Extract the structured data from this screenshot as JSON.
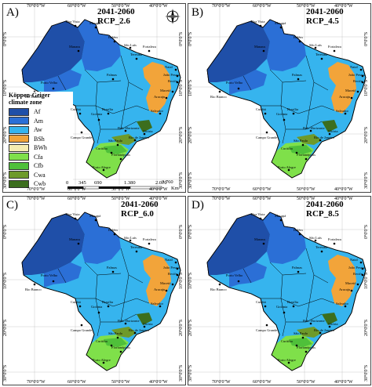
{
  "panels": [
    {
      "label": "A)",
      "period": "2041-2060",
      "scenario": "RCP_2.6"
    },
    {
      "label": "B)",
      "period": "2041-2060",
      "scenario": "RCP_4.5"
    },
    {
      "label": "C)",
      "period": "2041-2060",
      "scenario": "RCP_6.0"
    },
    {
      "label": "D)",
      "period": "2041-2060",
      "scenario": "RCP_8.5"
    }
  ],
  "axes": {
    "lon_ticks": [
      "70°0'0\"W",
      "60°0'0\"W",
      "50°0'0\"W",
      "40°0'0\"W"
    ],
    "lat_ticks": [
      "0°0'0\"S",
      "10°0'0\"S",
      "20°0'0\"S",
      "30°0'0\"S"
    ]
  },
  "legend": {
    "title_line1": "Köppen-Geiger",
    "title_line2": "climate zone",
    "items": [
      {
        "code": "Af",
        "color": "#1f4fa8"
      },
      {
        "code": "Am",
        "color": "#2b6fd6"
      },
      {
        "code": "Aw",
        "color": "#36b4ee"
      },
      {
        "code": "BSh",
        "color": "#f2a43a"
      },
      {
        "code": "BWh",
        "color": "#f5ecb0"
      },
      {
        "code": "Cfa",
        "color": "#7fe04a"
      },
      {
        "code": "Cfb",
        "color": "#4fc03a"
      },
      {
        "code": "Cwa",
        "color": "#6e9a2a"
      },
      {
        "code": "Cwb",
        "color": "#3c6e1e"
      }
    ]
  },
  "scale": {
    "labels": [
      "0",
      "345",
      "690",
      "1.380",
      "2.070",
      "2.760"
    ],
    "unit": "Km"
  },
  "cities": [
    "Macapá",
    "Boa Vista",
    "Manaus",
    "Belém",
    "Fortaleza",
    "Teresina",
    "Natal",
    "João Pessoa",
    "Recife",
    "Maceió",
    "Aracaju",
    "Salvador",
    "Palmas",
    "Porto Velho",
    "Rio Branco",
    "Cuiabá",
    "Goiânia",
    "Brasília",
    "Campo Grande",
    "Belo Horizonte",
    "Vitória",
    "Rio de Janeiro",
    "São Paulo",
    "Curitiba",
    "Florianópolis",
    "Porto Alegre",
    "São Luís"
  ],
  "compass": {
    "n": "N"
  }
}
